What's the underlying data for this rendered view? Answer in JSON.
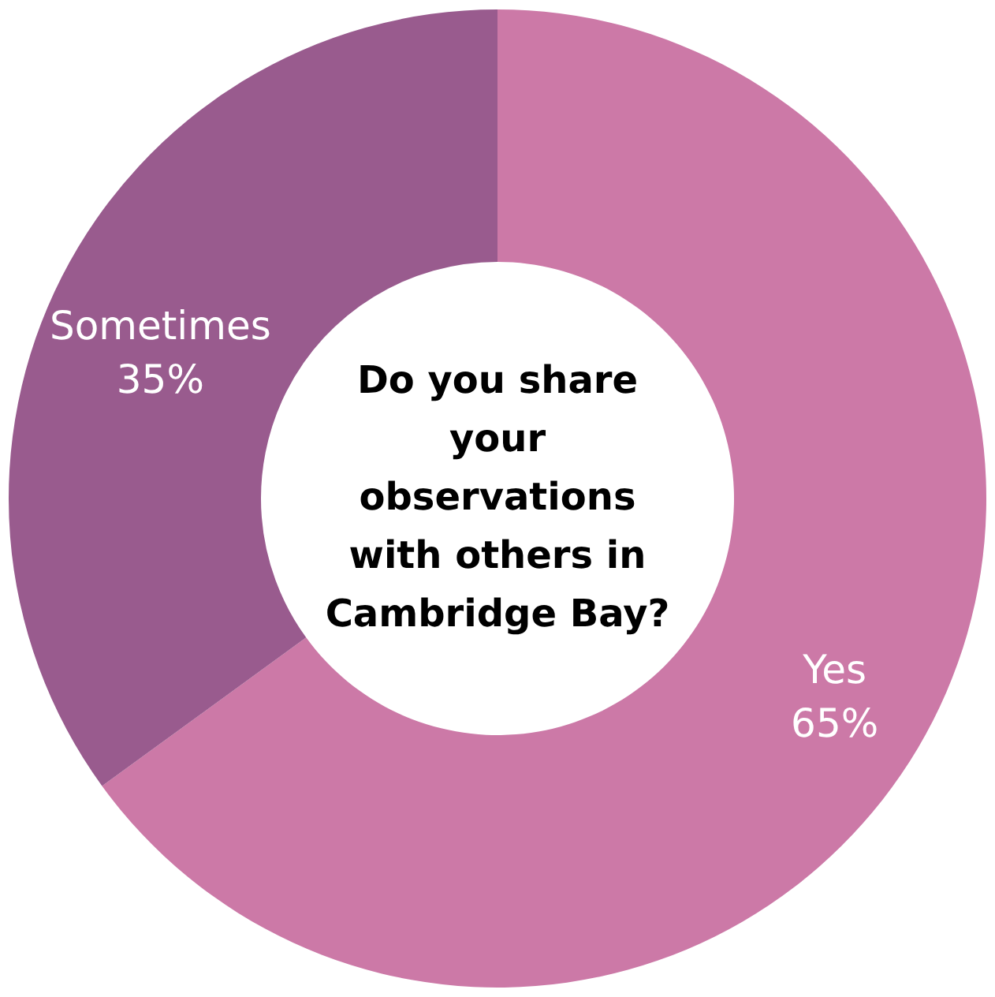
{
  "chart_data": {
    "type": "donut",
    "title": "Do you share your observations with others in Cambridge Bay?",
    "categories": [
      "Yes",
      "Sometimes"
    ],
    "values": [
      65,
      35
    ],
    "value_labels": [
      "65%",
      "35%"
    ],
    "colors": [
      "#cc79a7",
      "#995b8e"
    ],
    "legend": false
  }
}
